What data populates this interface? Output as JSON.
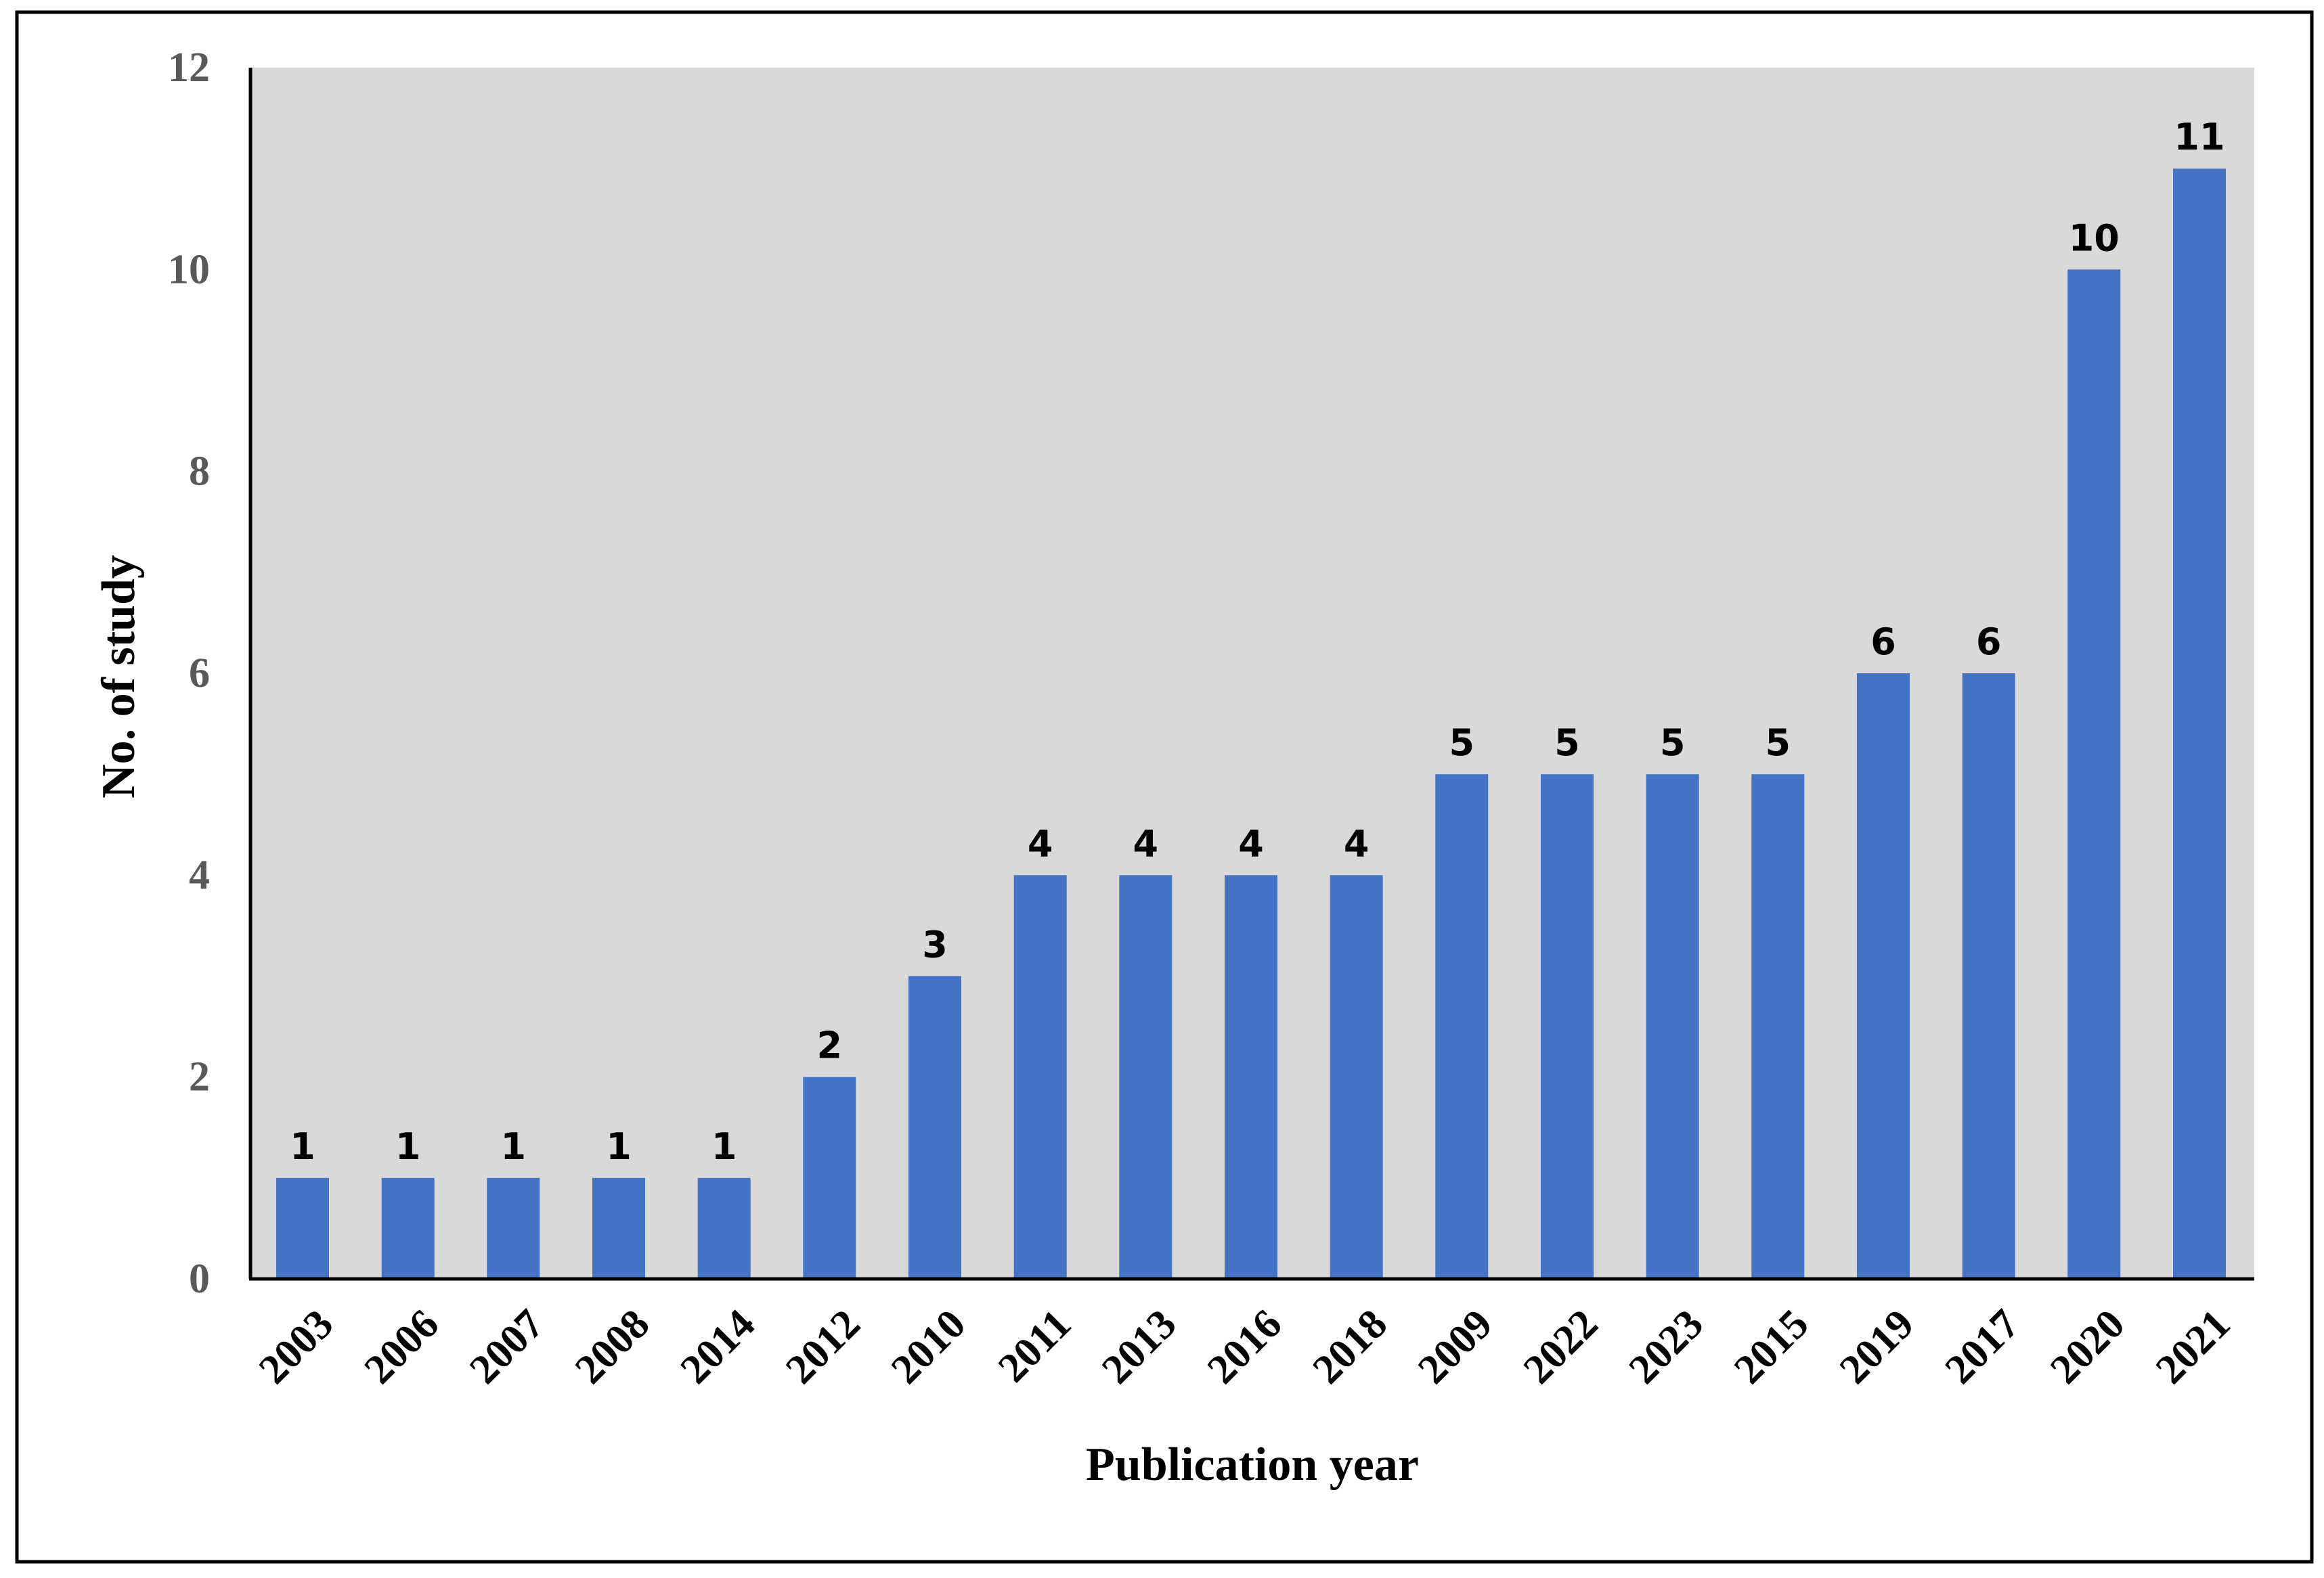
{
  "chart_data": {
    "type": "bar",
    "title": "",
    "xlabel": "Publication  year",
    "ylabel": "No. of study",
    "categories": [
      "2003",
      "2006",
      "2007",
      "2008",
      "2014",
      "2012",
      "2010",
      "2011",
      "2013",
      "2016",
      "2018",
      "2009",
      "2022",
      "2023",
      "2015",
      "2019",
      "2017",
      "2020",
      "2021"
    ],
    "values": [
      1,
      1,
      1,
      1,
      1,
      2,
      3,
      4,
      4,
      4,
      4,
      5,
      5,
      5,
      5,
      6,
      6,
      10,
      11
    ],
    "ylim": [
      0,
      12
    ],
    "yticks": [
      0,
      2,
      4,
      6,
      8,
      10,
      12
    ],
    "grid": false,
    "legend": "none",
    "data_labels": true,
    "colors": {
      "bar": "#4472C4",
      "plot_background": "#D9D9D9",
      "tick_label": "#595959",
      "frame": "#000000"
    }
  }
}
